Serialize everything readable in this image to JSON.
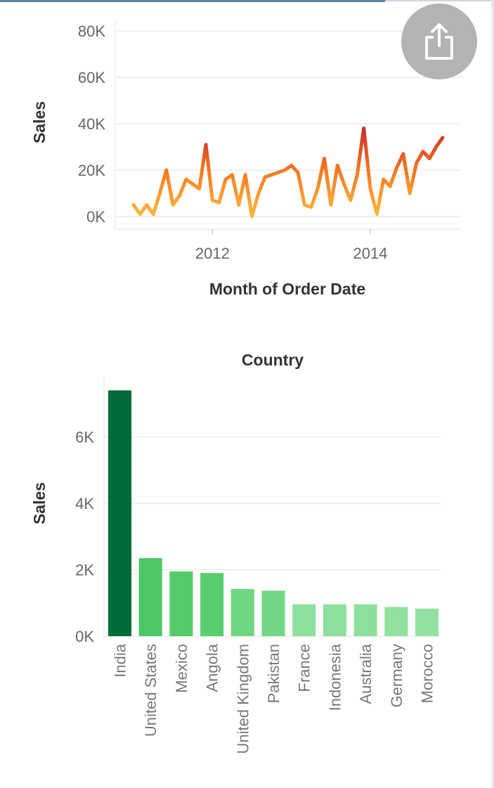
{
  "share": {
    "icon": "share-icon",
    "color": "#b3b3b3"
  },
  "chart_data": [
    {
      "type": "line",
      "xlabel": "Month of Order Date",
      "ylabel": "Sales",
      "ylim": [
        0,
        80000
      ],
      "y_ticks": [
        "0K",
        "20K",
        "40K",
        "60K",
        "80K"
      ],
      "x_ticks": [
        "2012",
        "2014"
      ],
      "grid": true,
      "color_scale": [
        "#ffc447",
        "#f47a21",
        "#c9262c"
      ],
      "x": [
        "2011-01",
        "2011-02",
        "2011-03",
        "2011-04",
        "2011-05",
        "2011-06",
        "2011-07",
        "2011-08",
        "2011-09",
        "2011-10",
        "2011-11",
        "2011-12",
        "2012-01",
        "2012-02",
        "2012-03",
        "2012-04",
        "2012-05",
        "2012-06",
        "2012-07",
        "2012-08",
        "2012-09",
        "2012-10",
        "2012-11",
        "2012-12",
        "2013-01",
        "2013-02",
        "2013-03",
        "2013-04",
        "2013-05",
        "2013-06",
        "2013-07",
        "2013-08",
        "2013-09",
        "2013-10",
        "2013-11",
        "2013-12",
        "2014-01",
        "2014-02",
        "2014-03",
        "2014-04",
        "2014-05",
        "2014-06",
        "2014-07",
        "2014-08",
        "2014-09",
        "2014-10",
        "2014-11",
        "2014-12"
      ],
      "values": [
        5000,
        1000,
        5000,
        1000,
        10000,
        20000,
        5000,
        9000,
        16000,
        14000,
        12000,
        31000,
        7000,
        6000,
        16000,
        18000,
        5000,
        18000,
        0,
        10000,
        17000,
        18000,
        19000,
        20000,
        22000,
        19000,
        5000,
        4000,
        12000,
        25000,
        5000,
        22000,
        14000,
        7000,
        18000,
        38000,
        12000,
        1000,
        16000,
        13000,
        21000,
        27000,
        10000,
        23000,
        28000,
        25000,
        30000,
        34000
      ]
    },
    {
      "type": "bar",
      "title": "Country",
      "ylabel": "Sales",
      "ylim": [
        0,
        7400
      ],
      "y_ticks": [
        "0K",
        "2K",
        "4K",
        "6K"
      ],
      "grid": true,
      "categories": [
        "India",
        "United States",
        "Mexico",
        "Angola",
        "United Kingdom",
        "Pakistan",
        "France",
        "Indonesia",
        "Australia",
        "Germany",
        "Morocco"
      ],
      "values": [
        7400,
        2350,
        1950,
        1900,
        1420,
        1370,
        960,
        960,
        960,
        880,
        830
      ],
      "colors": [
        "#006b38",
        "#4cc765",
        "#55cc6c",
        "#57cd6e",
        "#6fd682",
        "#73d785",
        "#8ddf9c",
        "#8ddf9c",
        "#8ddf9c",
        "#90e09e",
        "#93e1a0"
      ]
    }
  ]
}
